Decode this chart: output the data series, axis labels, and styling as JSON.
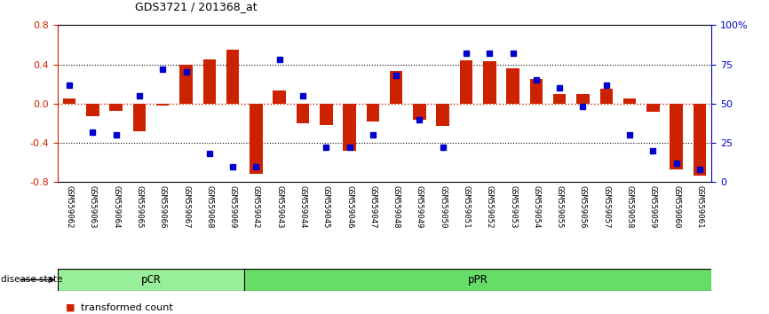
{
  "title": "GDS3721 / 201368_at",
  "samples": [
    "GSM559062",
    "GSM559063",
    "GSM559064",
    "GSM559065",
    "GSM559066",
    "GSM559067",
    "GSM559068",
    "GSM559069",
    "GSM559042",
    "GSM559043",
    "GSM559044",
    "GSM559045",
    "GSM559046",
    "GSM559047",
    "GSM559048",
    "GSM559049",
    "GSM559050",
    "GSM559051",
    "GSM559052",
    "GSM559053",
    "GSM559054",
    "GSM559055",
    "GSM559056",
    "GSM559057",
    "GSM559058",
    "GSM559059",
    "GSM559060",
    "GSM559061"
  ],
  "bar_values": [
    0.05,
    -0.13,
    -0.07,
    -0.28,
    -0.02,
    0.4,
    0.45,
    0.55,
    -0.72,
    0.13,
    -0.2,
    -0.22,
    -0.48,
    -0.18,
    0.33,
    -0.16,
    -0.23,
    0.44,
    0.43,
    0.36,
    0.25,
    0.1,
    0.1,
    0.15,
    0.05,
    -0.08,
    -0.67,
    -0.73
  ],
  "percentile_values": [
    62,
    32,
    30,
    55,
    72,
    70,
    18,
    10,
    10,
    78,
    55,
    22,
    22,
    30,
    68,
    40,
    22,
    82,
    82,
    82,
    65,
    60,
    48,
    62,
    30,
    20,
    12,
    8
  ],
  "pcr_count": 8,
  "ylim_left": [
    -0.8,
    0.8
  ],
  "ylim_right": [
    0,
    100
  ],
  "yticks_left": [
    -0.8,
    -0.4,
    0.0,
    0.4,
    0.8
  ],
  "yticks_right": [
    0,
    25,
    50,
    75,
    100
  ],
  "ytick_labels_right": [
    "0",
    "25",
    "50",
    "75",
    "100%"
  ],
  "bar_color": "#CC2200",
  "dot_color": "#0000CC",
  "pcr_color": "#99EE99",
  "ppr_color": "#66DD66",
  "bar_width": 0.55,
  "dot_size": 5
}
